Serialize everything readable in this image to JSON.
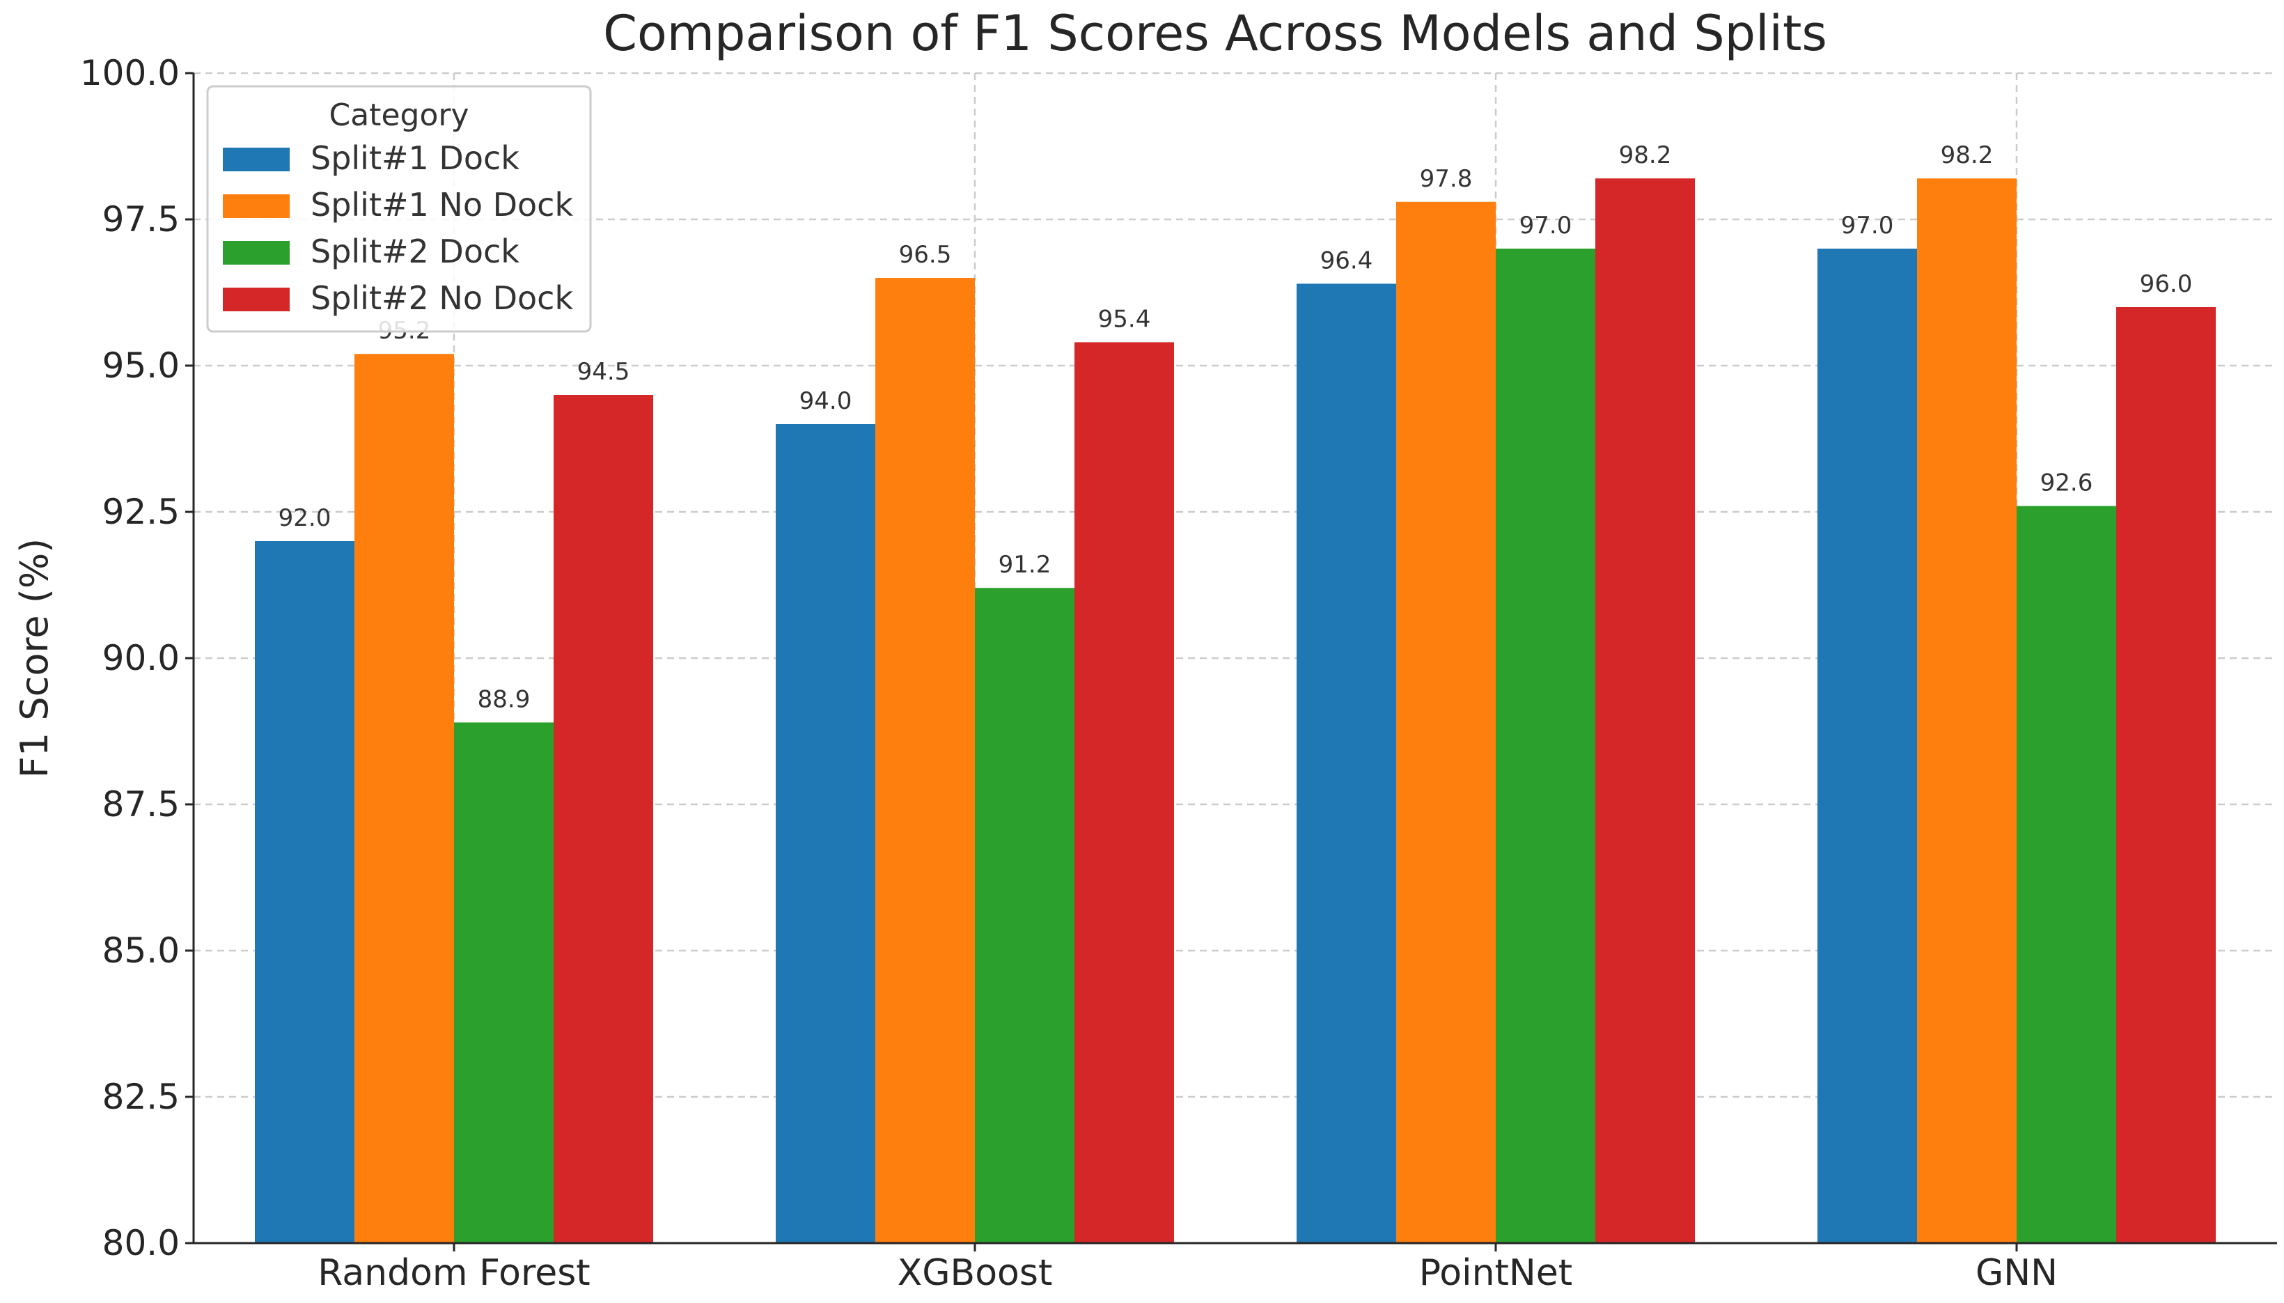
{
  "chart_data": {
    "type": "bar",
    "title": "Comparison of F1 Scores Across Models and Splits",
    "xlabel": "",
    "ylabel": "F1 Score (%)",
    "ylim": [
      80,
      100
    ],
    "yticks": [
      "80.0",
      "82.5",
      "85.0",
      "87.5",
      "90.0",
      "92.5",
      "95.0",
      "97.5",
      "100.0"
    ],
    "categories": [
      "Random Forest",
      "XGBoost",
      "PointNet",
      "GNN"
    ],
    "series": [
      {
        "name": "Split#1 Dock",
        "color": "#1f77b4",
        "values": [
          92.0,
          94.0,
          96.4,
          97.0
        ]
      },
      {
        "name": "Split#1 No Dock",
        "color": "#ff7f0e",
        "values": [
          95.2,
          96.5,
          97.8,
          98.2
        ]
      },
      {
        "name": "Split#2 Dock",
        "color": "#2ca02c",
        "values": [
          88.9,
          91.2,
          97.0,
          92.6
        ]
      },
      {
        "name": "Split#2 No Dock",
        "color": "#d62728",
        "values": [
          94.5,
          95.4,
          98.2,
          96.0
        ]
      }
    ],
    "legend": {
      "title": "Category",
      "position": "top-left"
    },
    "grid": true
  }
}
